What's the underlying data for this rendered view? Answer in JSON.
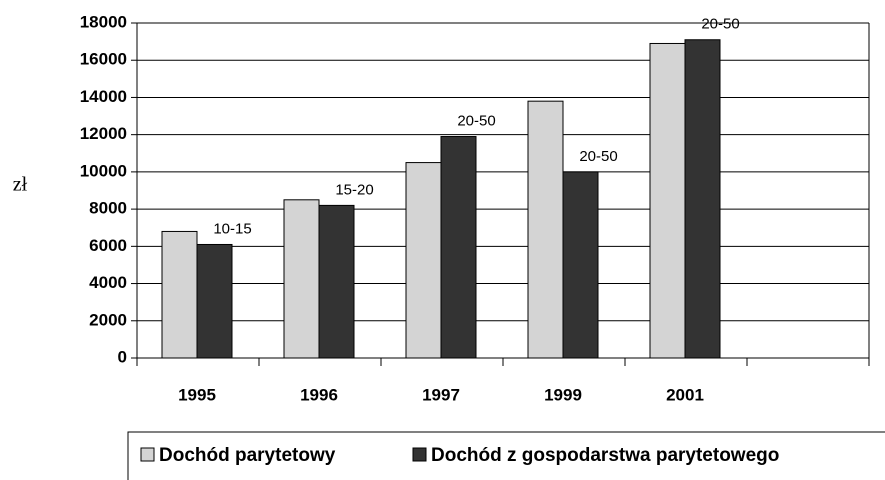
{
  "chart_data": {
    "type": "bar",
    "y_label": "zł",
    "categories": [
      "1995",
      "1996",
      "1997",
      "1999",
      "2001",
      null
    ],
    "series": [
      {
        "name": "Dochód parytetowy",
        "color": "#d4d4d4",
        "values": [
          6800,
          8500,
          10500,
          13800,
          16900,
          null
        ]
      },
      {
        "name": "Dochód z gospodarstwa parytetowego",
        "color": "#333333",
        "values": [
          6100,
          8200,
          11900,
          10000,
          17100,
          null
        ]
      }
    ],
    "annotations": [
      "10-15",
      "15-20",
      "20-50",
      "20-50",
      "20-50"
    ],
    "ylim": [
      0,
      18000
    ],
    "yticks": [
      0,
      2000,
      4000,
      6000,
      8000,
      10000,
      12000,
      14000,
      16000,
      18000
    ],
    "grid": true,
    "legend": "bottom"
  }
}
